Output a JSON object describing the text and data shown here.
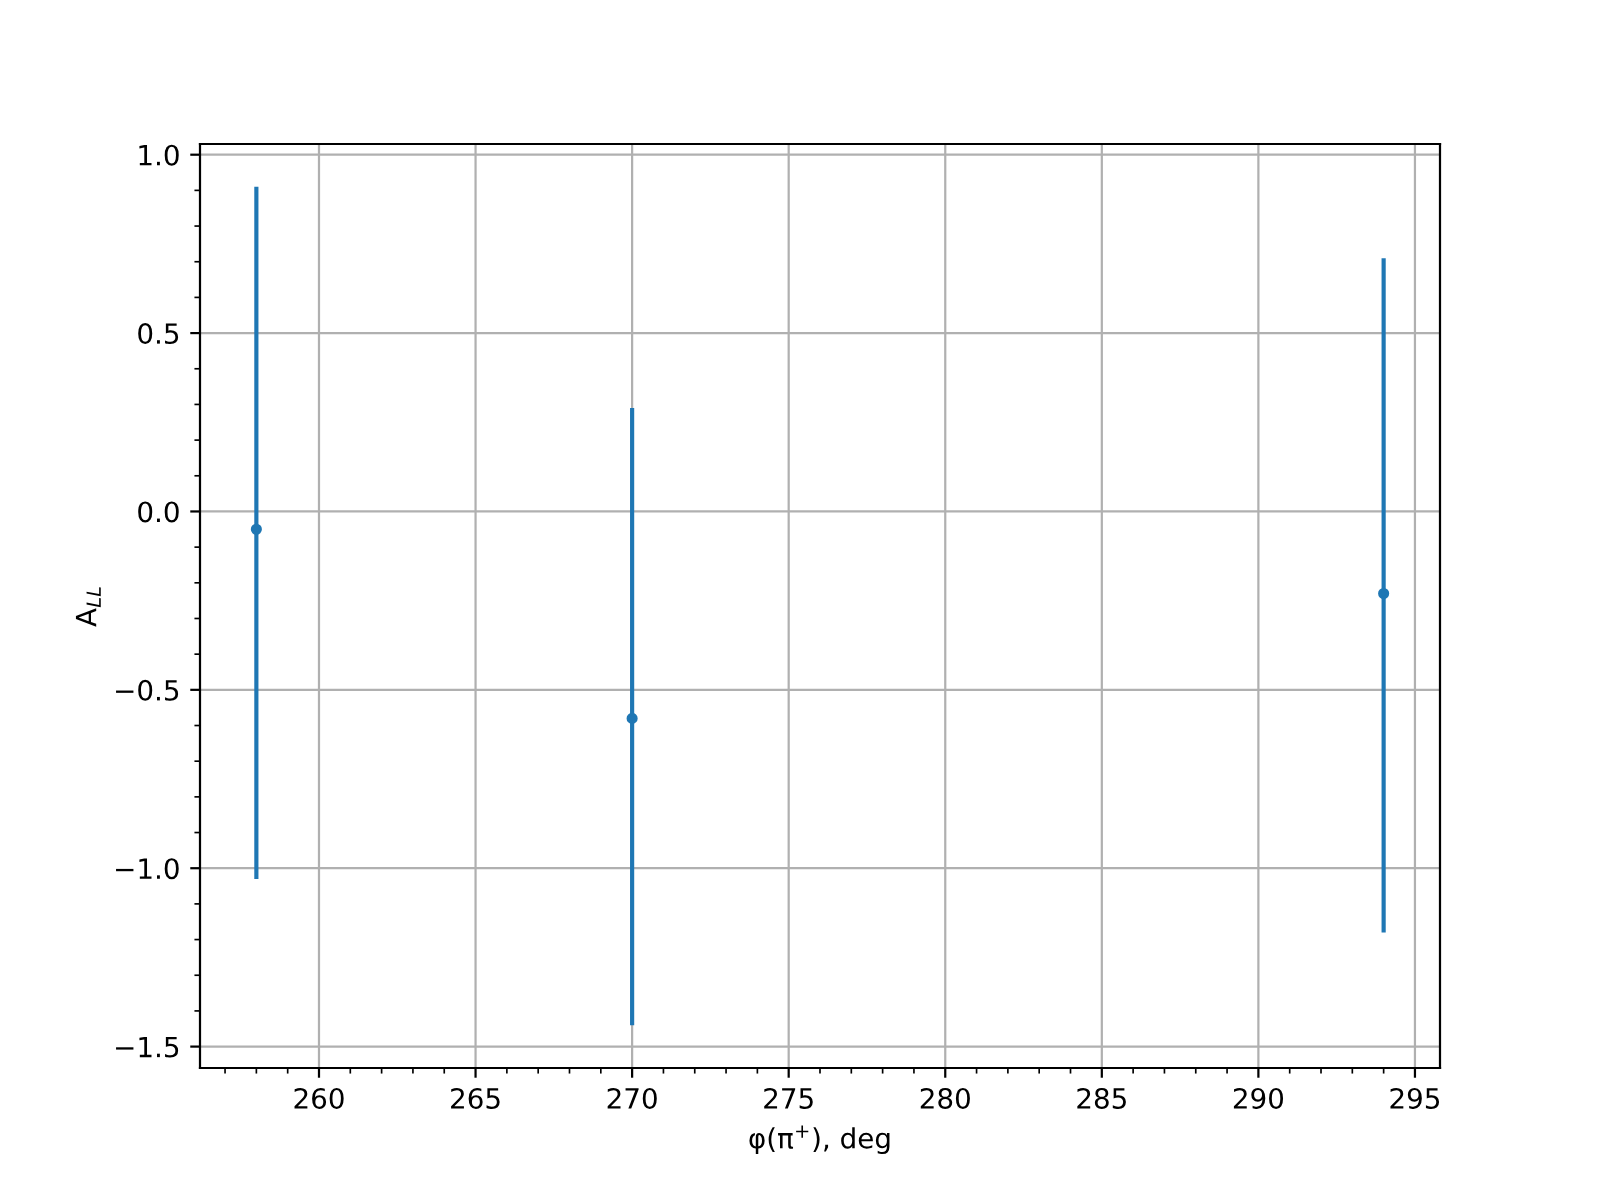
{
  "chart_data": {
    "type": "scatter",
    "xlabel": "φ(π$^{+}$), deg",
    "ylabel": "A$_{LL}$",
    "x": [
      258,
      270,
      294
    ],
    "series": [
      {
        "color": "#1f77b4",
        "values": [
          -0.05,
          -0.58,
          -0.23
        ],
        "errors": [
          [
            -1.03,
            0.91
          ],
          [
            -1.44,
            0.29
          ],
          [
            -1.18,
            0.71
          ]
        ]
      }
    ],
    "xlim": [
      256.2,
      295.8
    ],
    "xticks": [
      260,
      265,
      270,
      275,
      280,
      285,
      290,
      295
    ],
    "ylim": [
      -1.56,
      1.03
    ],
    "yticks": [
      {
        "value": -1.5,
        "label": "−1.5"
      },
      {
        "value": -1,
        "label": "−1.0"
      },
      {
        "value": -0.5,
        "label": "−0.5"
      },
      {
        "value": 0,
        "label": "0.0"
      },
      {
        "value": 0.5,
        "label": "0.5"
      },
      {
        "value": 1,
        "label": "1.0"
      }
    ],
    "grid": true,
    "marker": "circle"
  }
}
